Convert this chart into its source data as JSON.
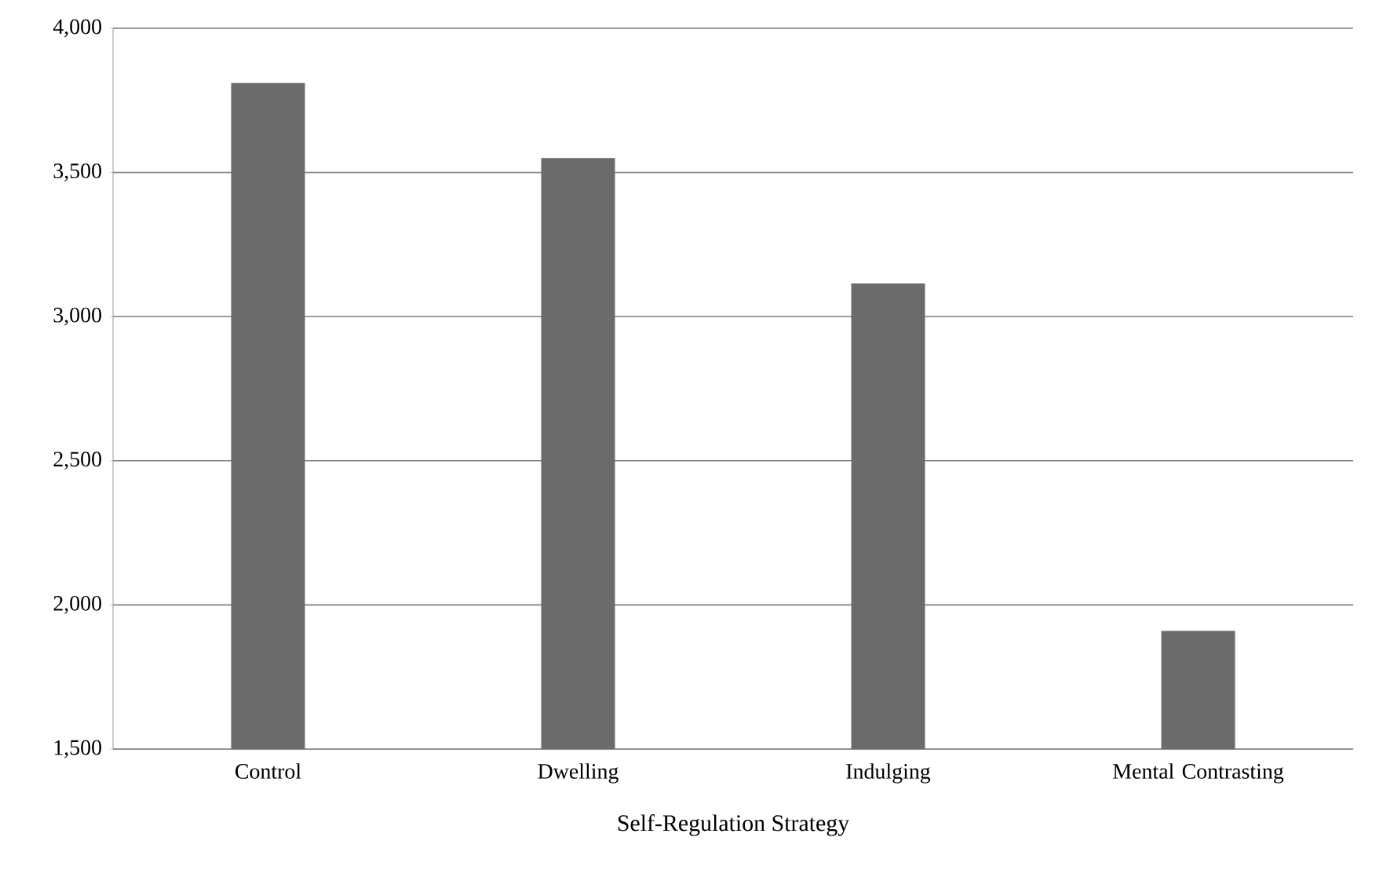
{
  "chart_data": {
    "type": "bar",
    "xlabel": "Self-Regulation Strategy",
    "categories": [
      "Control",
      "Dwelling",
      "Indulging",
      "Mental Contrasting"
    ],
    "values": [
      3810,
      3550,
      3115,
      1910
    ],
    "color": "#6b6b6b",
    "ylim": [
      1500,
      4000
    ],
    "yticks": [
      {
        "value": 1500,
        "label": "1,500"
      },
      {
        "value": 2000,
        "label": "2,000"
      },
      {
        "value": 2500,
        "label": "2,500"
      },
      {
        "value": 3000,
        "label": "3,000"
      },
      {
        "value": 3500,
        "label": "3,500"
      },
      {
        "value": 4000,
        "label": "4,000"
      }
    ],
    "grid": "y"
  }
}
